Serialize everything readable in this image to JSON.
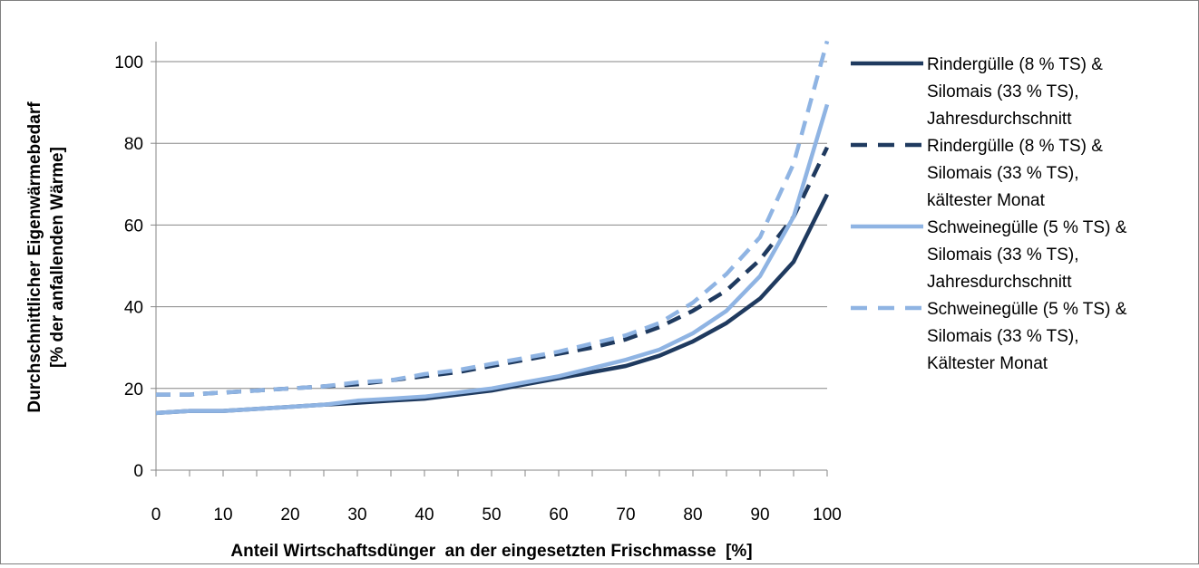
{
  "chart_data": {
    "type": "line",
    "xlabel": "Anteil Wirtschaftsdünger  an der eingesetzten Frischmasse  [%]",
    "ylabel_lines": [
      "Durchschnittlicher Eigenwärmebedarf",
      "[% der anfallenden Wärme]"
    ],
    "xlim": [
      0,
      100
    ],
    "ylim": [
      0,
      105
    ],
    "x_ticks": [
      0,
      10,
      20,
      30,
      40,
      50,
      60,
      70,
      80,
      90,
      100
    ],
    "y_ticks": [
      0,
      20,
      40,
      60,
      80,
      100
    ],
    "grid": "horizontal",
    "legend_position": "right",
    "x": [
      0,
      5,
      10,
      15,
      20,
      25,
      30,
      35,
      40,
      45,
      50,
      55,
      60,
      65,
      70,
      75,
      80,
      85,
      90,
      95,
      100
    ],
    "series": [
      {
        "name_lines": [
          "Rindergülle (8 % TS) &",
          "Silomais (33 % TS),",
          "Jahresdurchschnitt"
        ],
        "color": "#1f3a5f",
        "dash": "solid",
        "values": [
          14,
          14.5,
          14.5,
          15,
          15.5,
          16,
          16.5,
          17,
          17.5,
          18.5,
          19.5,
          21,
          22.5,
          24,
          25.5,
          28,
          31.5,
          36,
          42,
          51,
          67.5
        ]
      },
      {
        "name_lines": [
          "Rindergülle (8 % TS) &",
          "Silomais (33 % TS),",
          "kältester Monat"
        ],
        "color": "#1f3a5f",
        "dash": "dashed",
        "values": [
          18.5,
          18.5,
          19,
          19.5,
          20,
          20.5,
          21,
          22,
          23,
          24,
          25.5,
          27,
          28.5,
          30,
          32,
          35,
          39,
          44,
          51.5,
          62,
          79
        ]
      },
      {
        "name_lines": [
          "Schweinegülle (5 % TS) &",
          "Silomais (33 % TS),",
          "Jahresdurchschnitt"
        ],
        "color": "#8fb4e3",
        "dash": "solid",
        "values": [
          14,
          14.5,
          14.5,
          15,
          15.5,
          16,
          17,
          17.5,
          18,
          19,
          20,
          21.5,
          23,
          25,
          27,
          29.5,
          33.5,
          39,
          47.5,
          62,
          89.5
        ]
      },
      {
        "name_lines": [
          "Schweinegülle (5 % TS) &",
          "Silomais (33 % TS),",
          "Kältester Monat"
        ],
        "color": "#8fb4e3",
        "dash": "dashed",
        "values": [
          18.5,
          18.5,
          19,
          19.5,
          20,
          20.5,
          21.5,
          22,
          23.5,
          24.5,
          26,
          27.5,
          29,
          31,
          33,
          36,
          41,
          48,
          57,
          75,
          105
        ]
      }
    ]
  }
}
